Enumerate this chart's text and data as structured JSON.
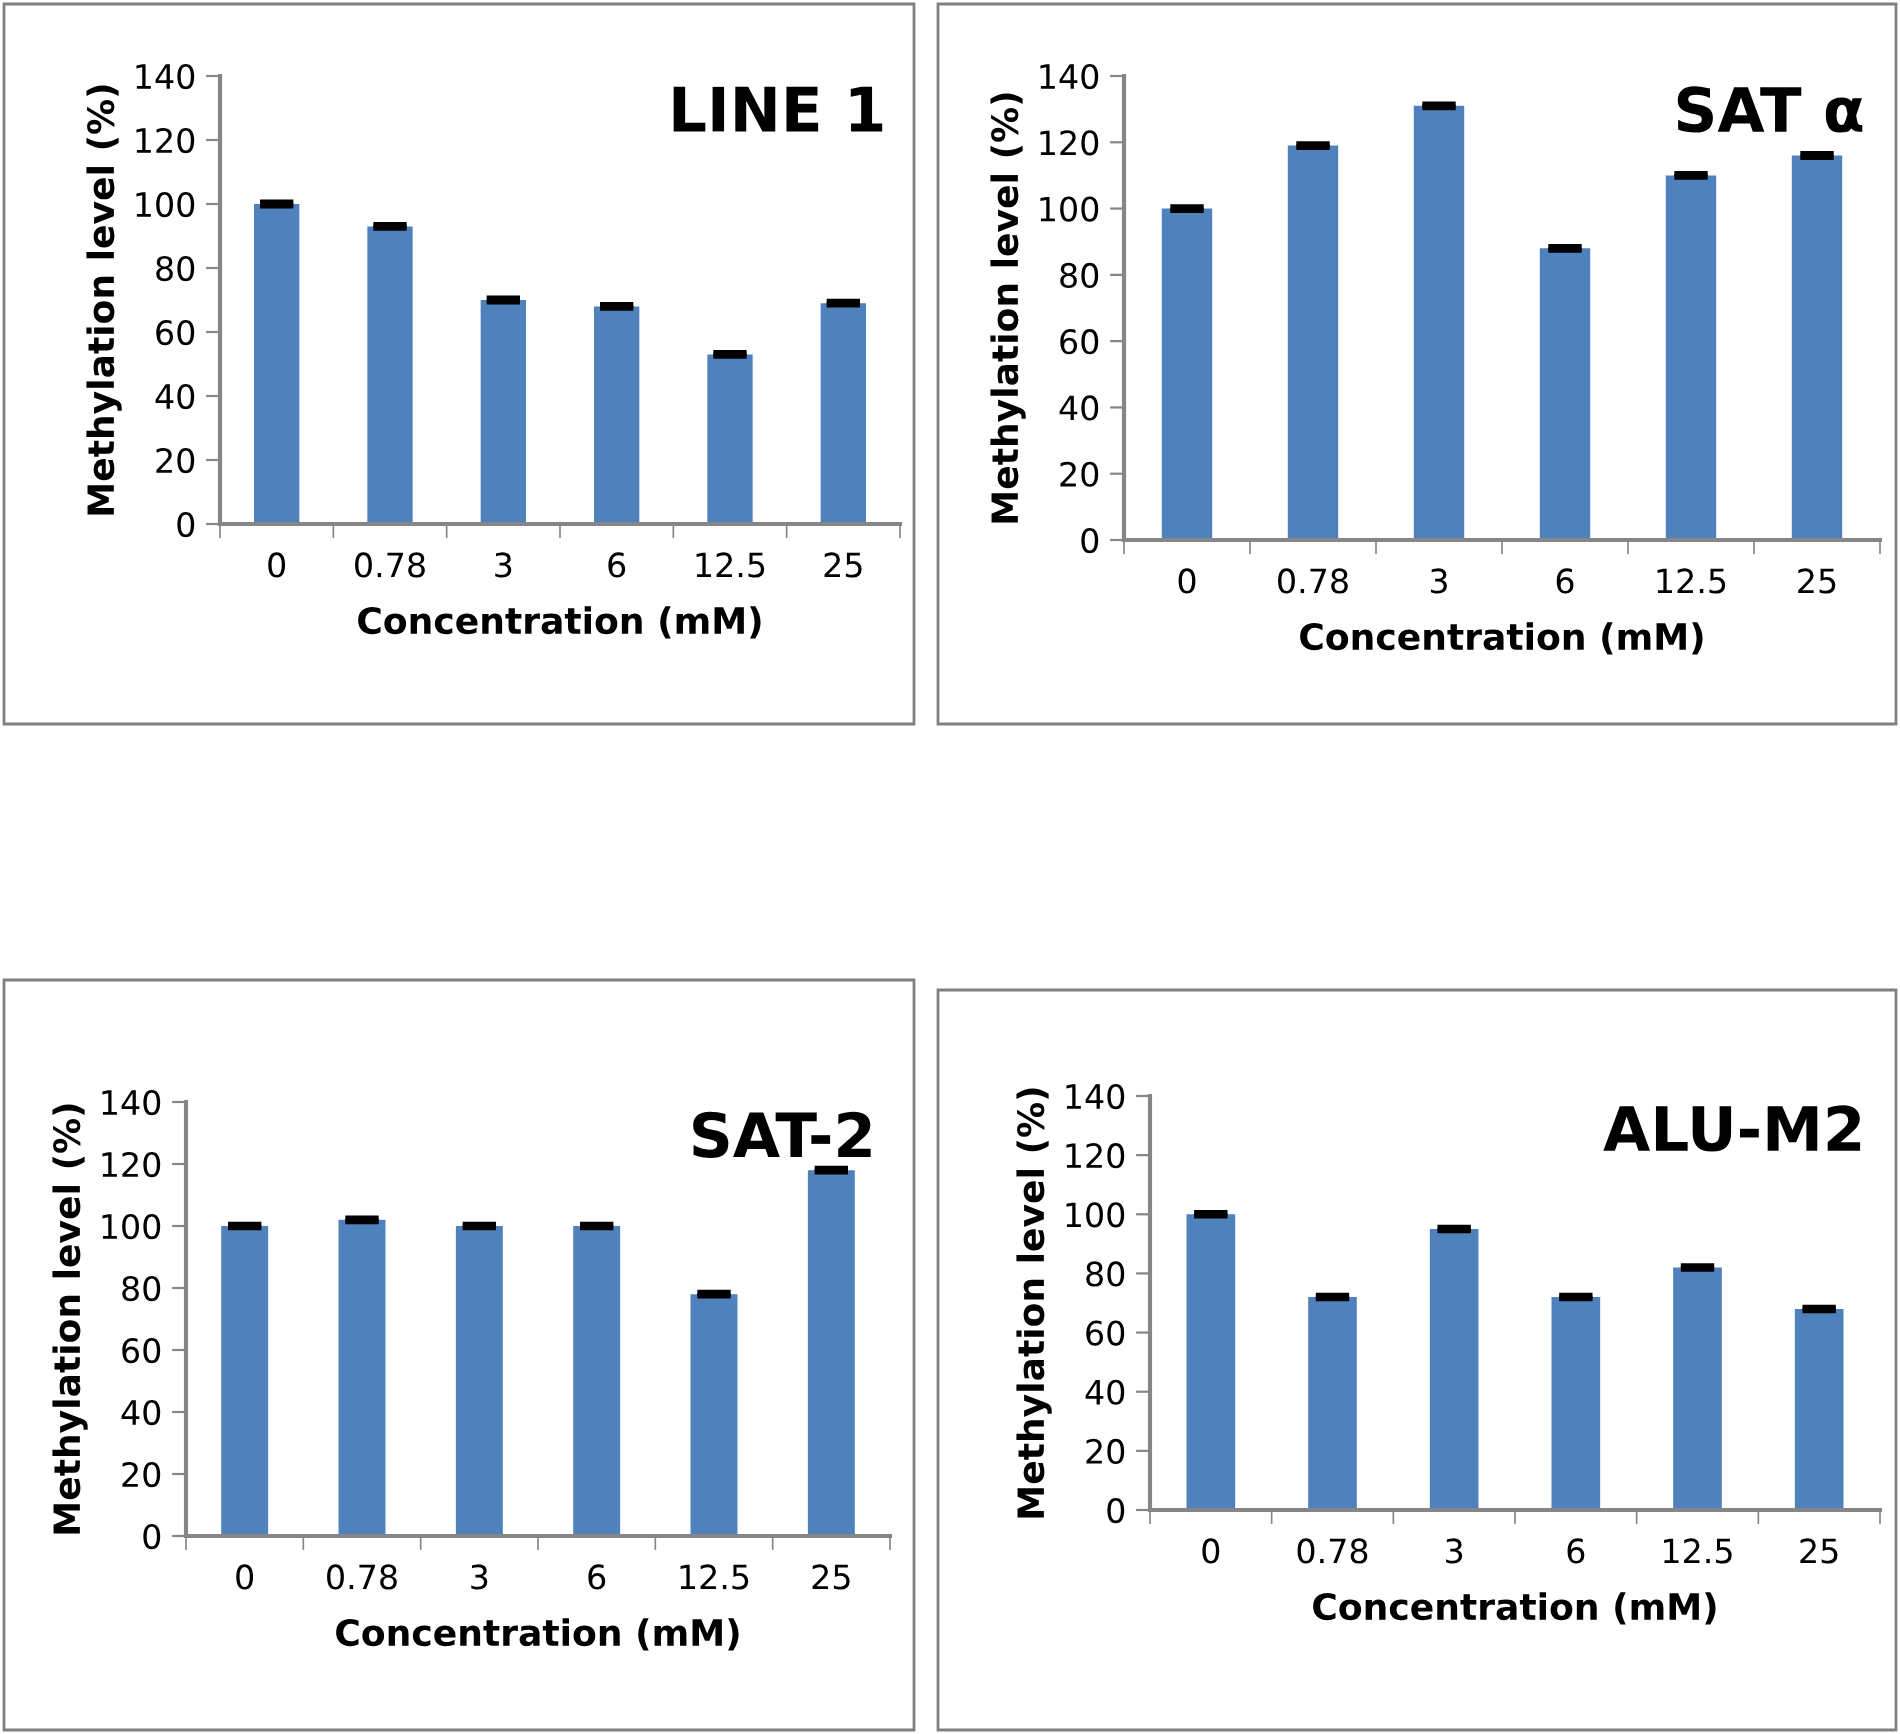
{
  "chart_data": [
    {
      "type": "bar",
      "title": "LINE 1",
      "xlabel": "Concentration (mM)",
      "ylabel": "Methylation level (%)",
      "categories": [
        "0",
        "0.78",
        "3",
        "6",
        "12.5",
        "25"
      ],
      "values": [
        100,
        93,
        70,
        68,
        53,
        69
      ],
      "errors": [
        0.5,
        0.5,
        0.5,
        0.5,
        0.5,
        0.5
      ],
      "color": "#4f81bd",
      "ylim": [
        0,
        140
      ],
      "yticks": [
        0,
        20,
        40,
        60,
        80,
        100,
        120,
        140
      ],
      "grid": false,
      "legend": false
    },
    {
      "type": "bar",
      "title": "SAT α",
      "xlabel": "Concentration (mM)",
      "ylabel": "Methylation level (%)",
      "categories": [
        "0",
        "0.78",
        "3",
        "6",
        "12.5",
        "25"
      ],
      "values": [
        100,
        119,
        131,
        88,
        110,
        116
      ],
      "errors": [
        0.5,
        0.5,
        0.5,
        0.5,
        0.5,
        0.5
      ],
      "color": "#4f81bd",
      "ylim": [
        0,
        140
      ],
      "yticks": [
        0,
        20,
        40,
        60,
        80,
        100,
        120,
        140
      ],
      "grid": false,
      "legend": false
    },
    {
      "type": "bar",
      "title": "SAT-2",
      "xlabel": "Concentration (mM)",
      "ylabel": "Methylation level (%)",
      "categories": [
        "0",
        "0.78",
        "3",
        "6",
        "12.5",
        "25"
      ],
      "values": [
        100,
        102,
        100,
        100,
        78,
        118
      ],
      "errors": [
        0.5,
        0.5,
        0.5,
        0.5,
        0.5,
        0.5
      ],
      "color": "#4f81bd",
      "ylim": [
        0,
        140
      ],
      "yticks": [
        0,
        20,
        40,
        60,
        80,
        100,
        120,
        140
      ],
      "grid": false,
      "legend": false
    },
    {
      "type": "bar",
      "title": "ALU-M2",
      "xlabel": "Concentration (mM)",
      "ylabel": "Methylation level (%)",
      "categories": [
        "0",
        "0.78",
        "3",
        "6",
        "12.5",
        "25"
      ],
      "values": [
        100,
        72,
        95,
        72,
        82,
        68
      ],
      "errors": [
        0.5,
        0.5,
        0.5,
        0.5,
        0.5,
        0.5
      ],
      "color": "#4f81bd",
      "ylim": [
        0,
        140
      ],
      "yticks": [
        0,
        20,
        40,
        60,
        80,
        100,
        120,
        140
      ],
      "grid": false,
      "legend": false
    }
  ]
}
